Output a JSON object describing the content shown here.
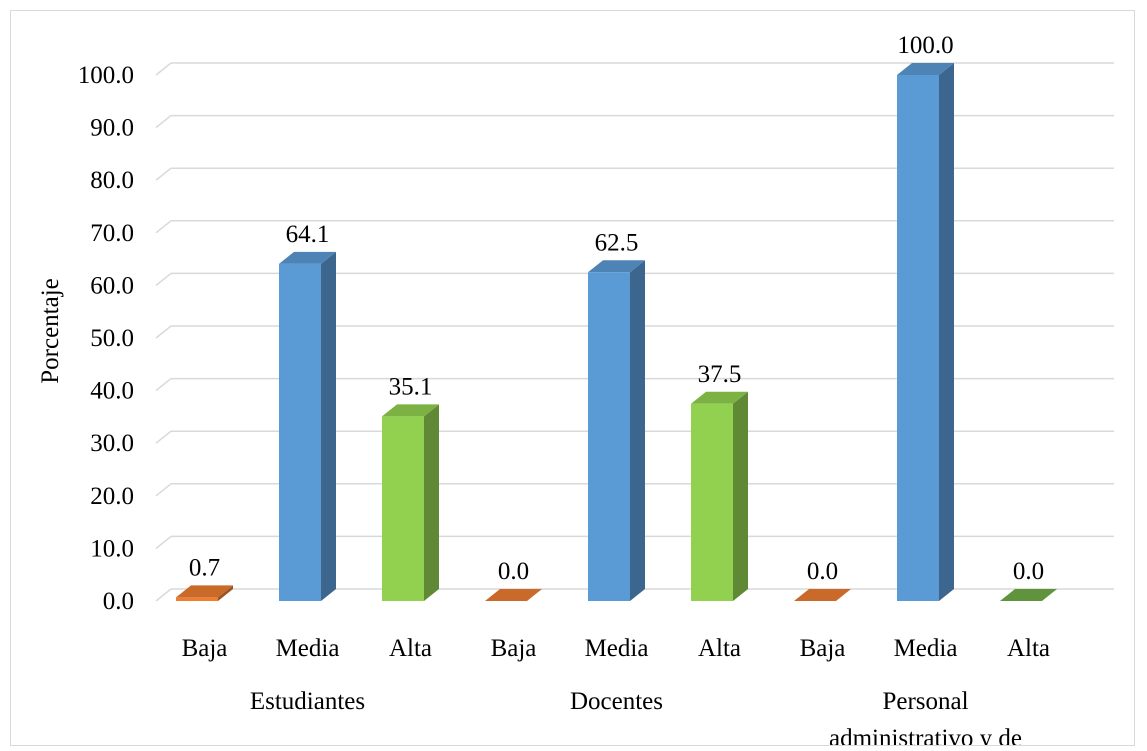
{
  "chart_data": {
    "type": "bar",
    "ylabel": "Porcentaje",
    "xlabel": "",
    "ylim": [
      0,
      100
    ],
    "yticks": [
      "0.0",
      "10.0",
      "20.0",
      "30.0",
      "40.0",
      "50.0",
      "60.0",
      "70.0",
      "80.0",
      "90.0",
      "100.0"
    ],
    "grid": true,
    "style": "3d-column",
    "groups": [
      {
        "label": "Estudiantes",
        "bars": [
          {
            "category": "Baja",
            "value": 0.7,
            "label": "0.7",
            "color": "#ED7D31"
          },
          {
            "category": "Media",
            "value": 64.1,
            "label": "64.1",
            "color": "#5B9BD5"
          },
          {
            "category": "Alta",
            "value": 35.1,
            "label": "35.1",
            "color": "#92D050"
          }
        ]
      },
      {
        "label": "Docentes",
        "bars": [
          {
            "category": "Baja",
            "value": 0.0,
            "label": "0.0",
            "color": "#ED7D31"
          },
          {
            "category": "Media",
            "value": 62.5,
            "label": "62.5",
            "color": "#5B9BD5"
          },
          {
            "category": "Alta",
            "value": 37.5,
            "label": "37.5",
            "color": "#92D050"
          }
        ]
      },
      {
        "label_lines": [
          "Personal",
          "administrativo y de"
        ],
        "bars": [
          {
            "category": "Baja",
            "value": 0.0,
            "label": "0.0",
            "color": "#ED7D31"
          },
          {
            "category": "Media",
            "value": 100.0,
            "label": "100.0",
            "color": "#5B9BD5"
          },
          {
            "category": "Alta",
            "value": 0.0,
            "label": "0.0",
            "color": "#70AD47"
          }
        ]
      }
    ]
  }
}
